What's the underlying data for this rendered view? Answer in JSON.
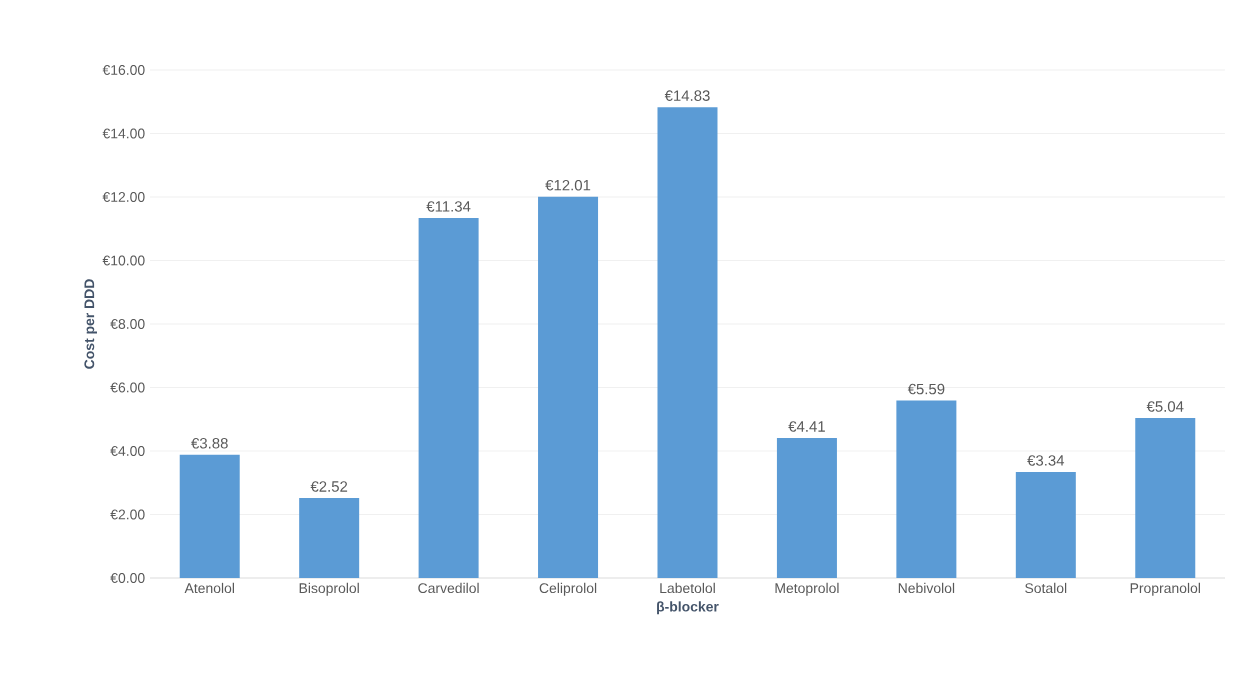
{
  "chart_data": {
    "type": "bar",
    "xlabel": "β-blocker",
    "ylabel": "Cost per DDD",
    "categories": [
      "Atenolol",
      "Bisoprolol",
      "Carvedilol",
      "Celiprolol",
      "Labetolol",
      "Metoprolol",
      "Nebivolol",
      "Sotalol",
      "Propranolol"
    ],
    "values": [
      3.88,
      2.52,
      11.34,
      12.01,
      14.83,
      4.41,
      5.59,
      3.34,
      5.04
    ],
    "value_labels": [
      "€3.88",
      "€2.52",
      "€11.34",
      "€12.01",
      "€14.83",
      "€4.41",
      "€5.59",
      "€3.34",
      "€5.04"
    ],
    "color": "#5b9bd5",
    "ylim": [
      0,
      16
    ],
    "yticks": [
      {
        "value": 0,
        "label": "€0.00"
      },
      {
        "value": 2,
        "label": "€2.00"
      },
      {
        "value": 4,
        "label": "€4.00"
      },
      {
        "value": 6,
        "label": "€6.00"
      },
      {
        "value": 8,
        "label": "€8.00"
      },
      {
        "value": 10,
        "label": "€10.00"
      },
      {
        "value": 12,
        "label": "€12.00"
      },
      {
        "value": 14,
        "label": "€14.00"
      },
      {
        "value": 16,
        "label": "€16.00"
      }
    ],
    "grid": "y"
  }
}
